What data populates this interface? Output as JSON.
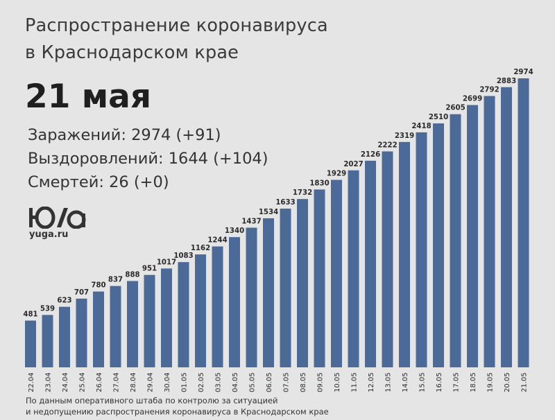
{
  "chart_data": {
    "type": "bar",
    "title": "Распространение коронавируса в Краснодарском крае",
    "categories": [
      "22.04",
      "23.04",
      "24.04",
      "25.04",
      "26.04",
      "27.04",
      "28.04",
      "29.04",
      "30.04",
      "01.05",
      "02.05",
      "03.05",
      "04.05",
      "05.05",
      "06.05",
      "07.05",
      "08.05",
      "09.05",
      "10.05",
      "11.05",
      "12.05",
      "13.05",
      "14.05",
      "15.05",
      "16.05",
      "17.05",
      "18.05",
      "19.05",
      "20.05",
      "21.05"
    ],
    "values": [
      481,
      539,
      623,
      707,
      780,
      837,
      888,
      951,
      1017,
      1083,
      1162,
      1244,
      1340,
      1437,
      1534,
      1633,
      1732,
      1830,
      1929,
      2027,
      2126,
      2222,
      2319,
      2418,
      2510,
      2605,
      2699,
      2792,
      2883,
      2974
    ],
    "xlabel": "",
    "ylabel": "",
    "grid": false,
    "bar_color": "#4c6a98"
  },
  "header": {
    "title_line1": "Распространение коронавируса",
    "title_line2": "в Краснодарском крае",
    "date": "21 мая"
  },
  "stats": {
    "infected": "Заражений: 2974 (+91)",
    "recovered": "Выздоровлений: 1644 (+104)",
    "deaths": "Смертей: 26 (+0)"
  },
  "logo": {
    "mark": "ЮГА",
    "site": "yuga.ru"
  },
  "source": {
    "line1": "По данным оперативного штаба по контролю за ситуацией",
    "line2": "и недопущению распространения коронавируса в Краснодарском крае"
  }
}
